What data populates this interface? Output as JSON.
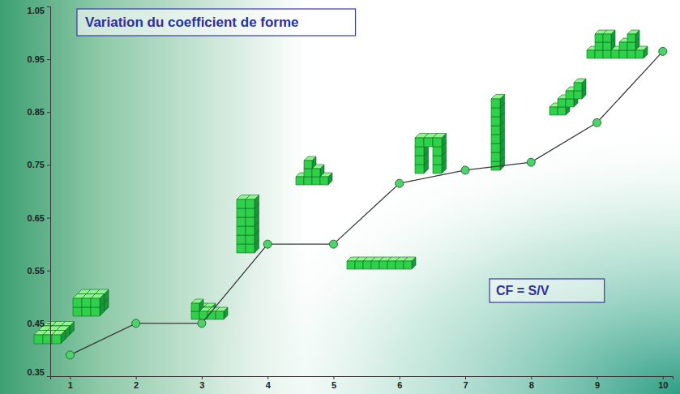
{
  "chart_data": {
    "type": "line",
    "title": "Variation du coefficient de forme",
    "annotations": [
      "CF = S/V"
    ],
    "x": [
      1,
      2,
      3,
      4,
      5,
      6,
      7,
      8,
      9,
      10
    ],
    "values": [
      0.39,
      0.45,
      0.45,
      0.6,
      0.6,
      0.715,
      0.74,
      0.755,
      0.83,
      0.965
    ],
    "color": "#3a3a3a",
    "marker": "circle",
    "xlim": [
      0.7,
      10.15
    ],
    "ylim": [
      0.35,
      1.05
    ],
    "xticks": [
      1,
      2,
      3,
      4,
      5,
      6,
      7,
      8,
      9,
      10
    ],
    "yticks": [
      0.35,
      0.45,
      0.55,
      0.65,
      0.75,
      0.85,
      0.95,
      1.05
    ],
    "grid": false
  }
}
